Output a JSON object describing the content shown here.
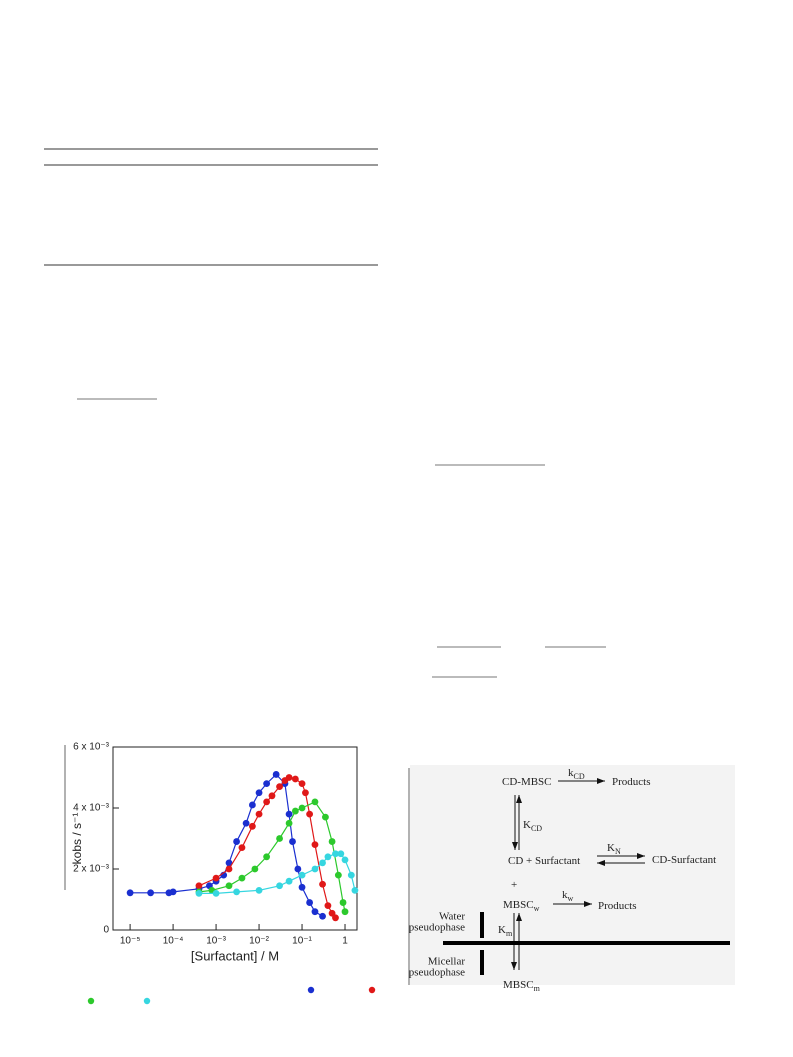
{
  "chart_data": {
    "type": "scatter",
    "xlabel": "[Surfactant] / M",
    "ylabel": "kobs / s⁻¹",
    "xscale": "log",
    "xlim": [
      4e-06,
      1.9
    ],
    "ylim": [
      0,
      0.006
    ],
    "xticks": [
      {
        "value": 1e-05,
        "label": "10⁻⁵"
      },
      {
        "value": 0.0001,
        "label": "10⁻⁴"
      },
      {
        "value": 0.001,
        "label": "10⁻³"
      },
      {
        "value": 0.01,
        "label": "10⁻²"
      },
      {
        "value": 0.1,
        "label": "10⁻¹"
      },
      1
    ],
    "yticks": [
      0,
      {
        "value": 0.002,
        "label": "2 x 10⁻³"
      },
      {
        "value": 0.004,
        "label": "4 x 10⁻³"
      },
      {
        "value": 0.006,
        "label": "6 x 10⁻³"
      }
    ],
    "series": [
      {
        "color": "#1a2fd0",
        "x": [
          1e-05,
          3e-05,
          8e-05,
          0.0001,
          0.0004,
          0.0007,
          0.001,
          0.0015,
          0.002,
          0.003,
          0.005,
          0.007,
          0.01,
          0.015,
          0.025,
          0.04,
          0.05,
          0.06,
          0.08,
          0.1,
          0.15,
          0.2,
          0.3
        ],
        "values": [
          0.00122,
          0.00122,
          0.00122,
          0.00125,
          0.00135,
          0.00145,
          0.0016,
          0.0018,
          0.0022,
          0.0029,
          0.0035,
          0.0041,
          0.0045,
          0.0048,
          0.0051,
          0.0048,
          0.0038,
          0.0029,
          0.002,
          0.0014,
          0.0009,
          0.0006,
          0.00045
        ]
      },
      {
        "color": "#e01818",
        "x": [
          0.0004,
          0.001,
          0.002,
          0.004,
          0.007,
          0.01,
          0.015,
          0.02,
          0.03,
          0.04,
          0.05,
          0.07,
          0.1,
          0.12,
          0.15,
          0.2,
          0.3,
          0.4,
          0.5,
          0.6
        ],
        "values": [
          0.00145,
          0.0017,
          0.002,
          0.0027,
          0.0034,
          0.0038,
          0.0042,
          0.0044,
          0.0047,
          0.0049,
          0.005,
          0.00495,
          0.0048,
          0.0045,
          0.0038,
          0.0028,
          0.0015,
          0.0008,
          0.00055,
          0.0004
        ]
      },
      {
        "color": "#2cc92c",
        "x": [
          0.0004,
          0.0008,
          0.002,
          0.004,
          0.008,
          0.015,
          0.03,
          0.05,
          0.07,
          0.1,
          0.2,
          0.35,
          0.5,
          0.7,
          0.9,
          1
        ],
        "values": [
          0.00125,
          0.0013,
          0.00145,
          0.0017,
          0.002,
          0.0024,
          0.003,
          0.0035,
          0.0039,
          0.004,
          0.0042,
          0.0037,
          0.0029,
          0.0018,
          0.0009,
          0.0006
        ]
      },
      {
        "color": "#36d6e0",
        "x": [
          0.0004,
          0.001,
          0.003,
          0.01,
          0.03,
          0.05,
          0.1,
          0.2,
          0.3,
          0.4,
          0.6,
          0.8,
          1,
          1.4,
          1.7
        ],
        "values": [
          0.0012,
          0.0012,
          0.00125,
          0.0013,
          0.00145,
          0.0016,
          0.0018,
          0.002,
          0.0022,
          0.0024,
          0.0025,
          0.0025,
          0.0023,
          0.0018,
          0.0013
        ]
      }
    ]
  },
  "scheme": {
    "labels": [
      {
        "text": "CD-MBSC"
      },
      {
        "text": "k",
        "sub": "CD"
      },
      {
        "text": "Products"
      },
      {
        "text": "K",
        "sub": "CD"
      },
      {
        "text": "CD + Surfactant"
      },
      {
        "text": "K",
        "sub": "N"
      },
      {
        "text": "CD-Surfactant"
      },
      {
        "text": "+"
      },
      {
        "text": "MBSC",
        "sub": "w"
      },
      {
        "text": "k",
        "sub": "w"
      },
      {
        "text": "Products"
      },
      {
        "lines": [
          "Water",
          "pseudophase"
        ]
      },
      {
        "lines": [
          "Micellar",
          "pseudophase"
        ]
      },
      {
        "text": "K",
        "sub": "m"
      },
      {
        "text": "MBSC",
        "sub": "m"
      }
    ]
  }
}
